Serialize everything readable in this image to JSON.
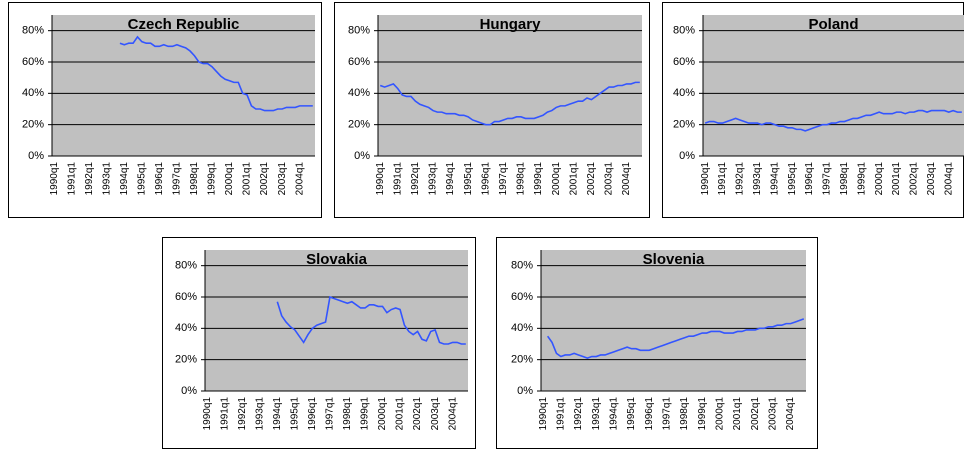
{
  "chart_data": [
    {
      "type": "line",
      "title": "Czech Republic",
      "color": "#3355ff",
      "grid": true,
      "ylim": [
        0,
        90
      ],
      "yticks": [
        {
          "value": 0,
          "label": "0%"
        },
        {
          "value": 20,
          "label": "20%"
        },
        {
          "value": 40,
          "label": "40%"
        },
        {
          "value": 60,
          "label": "60%"
        },
        {
          "value": 80,
          "label": "80%"
        }
      ],
      "categories": [
        "1990q1",
        null,
        null,
        null,
        "1991q1",
        null,
        null,
        null,
        "1992q1",
        null,
        null,
        null,
        "1993q1",
        null,
        null,
        null,
        "1994q1",
        null,
        null,
        null,
        "1995q1",
        null,
        null,
        null,
        "1996q1",
        null,
        null,
        null,
        "1997q1",
        null,
        null,
        null,
        "1998q1",
        null,
        null,
        null,
        "1999q1",
        null,
        null,
        null,
        "2000q1",
        null,
        null,
        null,
        "2001q1",
        null,
        null,
        null,
        "2002q1",
        null,
        null,
        null,
        "2003q1",
        null,
        null,
        null,
        "2004q1",
        null,
        null,
        null
      ],
      "values": [
        null,
        null,
        null,
        null,
        null,
        null,
        null,
        null,
        null,
        null,
        null,
        null,
        null,
        null,
        null,
        72,
        71,
        72,
        72,
        76,
        73,
        72,
        72,
        70,
        70,
        71,
        70,
        70,
        71,
        70,
        69,
        67,
        64,
        60,
        59,
        59,
        57,
        54,
        51,
        49,
        48,
        47,
        47,
        40,
        39,
        32,
        30,
        30,
        29,
        29,
        29,
        30,
        30,
        31,
        31,
        31,
        32,
        32,
        32,
        32
      ]
    },
    {
      "type": "line",
      "title": "Hungary",
      "color": "#3355ff",
      "grid": true,
      "ylim": [
        0,
        90
      ],
      "yticks": [
        {
          "value": 0,
          "label": "0%"
        },
        {
          "value": 20,
          "label": "20%"
        },
        {
          "value": 40,
          "label": "40%"
        },
        {
          "value": 60,
          "label": "60%"
        },
        {
          "value": 80,
          "label": "80%"
        }
      ],
      "categories": [
        "1990q1",
        null,
        null,
        null,
        "1991q1",
        null,
        null,
        null,
        "1992q1",
        null,
        null,
        null,
        "1993q1",
        null,
        null,
        null,
        "1994q1",
        null,
        null,
        null,
        "1995q1",
        null,
        null,
        null,
        "1996q1",
        null,
        null,
        null,
        "1997q1",
        null,
        null,
        null,
        "1998q1",
        null,
        null,
        null,
        "1999q1",
        null,
        null,
        null,
        "2000q1",
        null,
        null,
        null,
        "2001q1",
        null,
        null,
        null,
        "2002q1",
        null,
        null,
        null,
        "2003q1",
        null,
        null,
        null,
        "2004q1",
        null,
        null,
        null
      ],
      "values": [
        45,
        44,
        45,
        46,
        43,
        39,
        38,
        38,
        35,
        33,
        32,
        31,
        29,
        28,
        28,
        27,
        27,
        27,
        26,
        26,
        25,
        23,
        22,
        21,
        20,
        20,
        22,
        22,
        23,
        24,
        24,
        25,
        25,
        24,
        24,
        24,
        25,
        26,
        28,
        29,
        31,
        32,
        32,
        33,
        34,
        35,
        35,
        37,
        36,
        38,
        40,
        42,
        44,
        44,
        45,
        45,
        46,
        46,
        47,
        47
      ]
    },
    {
      "type": "line",
      "title": "Poland",
      "color": "#3355ff",
      "grid": true,
      "ylim": [
        0,
        90
      ],
      "yticks": [
        {
          "value": 0,
          "label": "0%"
        },
        {
          "value": 20,
          "label": "20%"
        },
        {
          "value": 40,
          "label": "40%"
        },
        {
          "value": 60,
          "label": "60%"
        },
        {
          "value": 80,
          "label": "80%"
        }
      ],
      "categories": [
        "1990q1",
        null,
        null,
        null,
        "1991q1",
        null,
        null,
        null,
        "1992q1",
        null,
        null,
        null,
        "1993q1",
        null,
        null,
        null,
        "1994q1",
        null,
        null,
        null,
        "1995q1",
        null,
        null,
        null,
        "1996q1",
        null,
        null,
        null,
        "1997q1",
        null,
        null,
        null,
        "1998q1",
        null,
        null,
        null,
        "1999q1",
        null,
        null,
        null,
        "2000q1",
        null,
        null,
        null,
        "2001q1",
        null,
        null,
        null,
        "2002q1",
        null,
        null,
        null,
        "2003q1",
        null,
        null,
        null,
        "2004q1",
        null,
        null,
        null
      ],
      "values": [
        21,
        22,
        22,
        21,
        21,
        22,
        23,
        24,
        23,
        22,
        21,
        21,
        21,
        20,
        21,
        21,
        20,
        19,
        19,
        18,
        18,
        17,
        17,
        16,
        17,
        18,
        19,
        20,
        20,
        21,
        21,
        22,
        22,
        23,
        24,
        24,
        25,
        26,
        26,
        27,
        28,
        27,
        27,
        27,
        28,
        28,
        27,
        28,
        28,
        29,
        29,
        28,
        29,
        29,
        29,
        29,
        28,
        29,
        28,
        28
      ]
    },
    {
      "type": "line",
      "title": "Slovakia",
      "color": "#3355ff",
      "grid": true,
      "ylim": [
        0,
        90
      ],
      "yticks": [
        {
          "value": 0,
          "label": "0%"
        },
        {
          "value": 20,
          "label": "20%"
        },
        {
          "value": 40,
          "label": "40%"
        },
        {
          "value": 60,
          "label": "60%"
        },
        {
          "value": 80,
          "label": "80%"
        }
      ],
      "categories": [
        "1990q1",
        null,
        null,
        null,
        "1991q1",
        null,
        null,
        null,
        "1992q1",
        null,
        null,
        null,
        "1993q1",
        null,
        null,
        null,
        "1994q1",
        null,
        null,
        null,
        "1995q1",
        null,
        null,
        null,
        "1996q1",
        null,
        null,
        null,
        "1997q1",
        null,
        null,
        null,
        "1998q1",
        null,
        null,
        null,
        "1999q1",
        null,
        null,
        null,
        "2000q1",
        null,
        null,
        null,
        "2001q1",
        null,
        null,
        null,
        "2002q1",
        null,
        null,
        null,
        "2003q1",
        null,
        null,
        null,
        "2004q1",
        null,
        null,
        null
      ],
      "values": [
        null,
        null,
        null,
        null,
        null,
        null,
        null,
        null,
        null,
        null,
        null,
        null,
        null,
        null,
        null,
        null,
        57,
        48,
        44,
        41,
        39,
        35,
        31,
        36,
        40,
        42,
        43,
        44,
        60,
        59,
        58,
        57,
        56,
        57,
        55,
        53,
        53,
        55,
        55,
        54,
        54,
        50,
        52,
        53,
        52,
        42,
        38,
        36,
        38,
        33,
        32,
        38,
        39,
        31,
        30,
        30,
        31,
        31,
        30,
        30
      ]
    },
    {
      "type": "line",
      "title": "Slovenia",
      "color": "#3355ff",
      "grid": true,
      "ylim": [
        0,
        90
      ],
      "yticks": [
        {
          "value": 0,
          "label": "0%"
        },
        {
          "value": 20,
          "label": "20%"
        },
        {
          "value": 40,
          "label": "40%"
        },
        {
          "value": 60,
          "label": "60%"
        },
        {
          "value": 80,
          "label": "80%"
        }
      ],
      "categories": [
        "1990q1",
        null,
        null,
        null,
        "1991q1",
        null,
        null,
        null,
        "1992q1",
        null,
        null,
        null,
        "1993q1",
        null,
        null,
        null,
        "1994q1",
        null,
        null,
        null,
        "1995q1",
        null,
        null,
        null,
        "1996q1",
        null,
        null,
        null,
        "1997q1",
        null,
        null,
        null,
        "1998q1",
        null,
        null,
        null,
        "1999q1",
        null,
        null,
        null,
        "2000q1",
        null,
        null,
        null,
        "2001q1",
        null,
        null,
        null,
        "2002q1",
        null,
        null,
        null,
        "2003q1",
        null,
        null,
        null,
        "2004q1",
        null,
        null,
        null
      ],
      "values": [
        null,
        35,
        31,
        24,
        22,
        23,
        23,
        24,
        23,
        22,
        21,
        22,
        22,
        23,
        23,
        24,
        25,
        26,
        27,
        28,
        27,
        27,
        26,
        26,
        26,
        27,
        28,
        29,
        30,
        31,
        32,
        33,
        34,
        35,
        35,
        36,
        37,
        37,
        38,
        38,
        38,
        37,
        37,
        37,
        38,
        38,
        39,
        39,
        39,
        40,
        40,
        41,
        41,
        42,
        42,
        43,
        43,
        44,
        45,
        46
      ]
    }
  ]
}
